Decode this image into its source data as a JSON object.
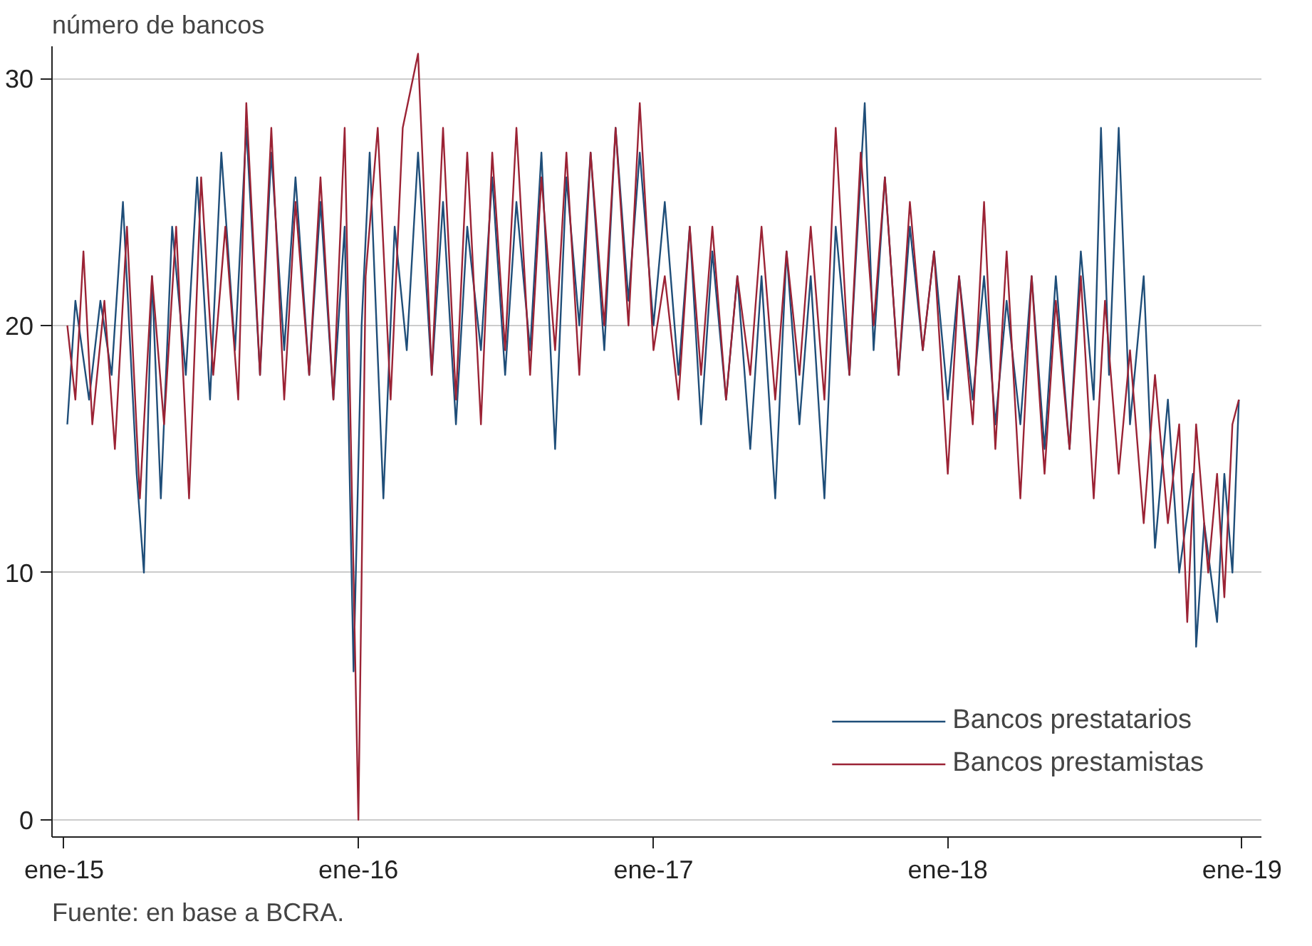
{
  "chart_data": {
    "type": "line",
    "ylabel": "número de bancos",
    "annotations": [
      "Fuente: en base a BCRA."
    ],
    "xlim": [
      "2014-12-17",
      "2019-01-25"
    ],
    "ylim": [
      -0.7,
      31.3
    ],
    "xticks": [
      {
        "value": "2015-01-01",
        "label": "ene-15"
      },
      {
        "value": "2016-01-01",
        "label": "ene-16"
      },
      {
        "value": "2017-01-01",
        "label": "ene-17"
      },
      {
        "value": "2018-01-01",
        "label": "ene-18"
      },
      {
        "value": "2019-01-01",
        "label": "ene-19"
      }
    ],
    "yticks": [
      0,
      10,
      20,
      30
    ],
    "grid": "y",
    "legend": "bottom right",
    "series": [
      {
        "name": "Bancos prestatarios",
        "color": "#1f4e79",
        "x": [
          "2015-01-05",
          "2015-01-15",
          "2015-02-01",
          "2015-02-15",
          "2015-03-01",
          "2015-03-15",
          "2015-04-01",
          "2015-04-10",
          "2015-04-20",
          "2015-05-01",
          "2015-05-15",
          "2015-06-01",
          "2015-06-15",
          "2015-07-01",
          "2015-07-15",
          "2015-08-01",
          "2015-08-15",
          "2015-09-01",
          "2015-09-15",
          "2015-10-01",
          "2015-10-15",
          "2015-11-01",
          "2015-11-15",
          "2015-12-01",
          "2015-12-15",
          "2015-12-26",
          "2016-01-05",
          "2016-01-15",
          "2016-02-01",
          "2016-02-15",
          "2016-03-01",
          "2016-03-15",
          "2016-04-01",
          "2016-04-15",
          "2016-05-01",
          "2016-05-15",
          "2016-06-01",
          "2016-06-15",
          "2016-07-01",
          "2016-07-15",
          "2016-08-01",
          "2016-08-15",
          "2016-09-01",
          "2016-09-15",
          "2016-10-01",
          "2016-10-15",
          "2016-11-01",
          "2016-11-15",
          "2016-12-01",
          "2016-12-15",
          "2017-01-01",
          "2017-01-15",
          "2017-02-01",
          "2017-02-15",
          "2017-03-01",
          "2017-03-15",
          "2017-04-01",
          "2017-04-15",
          "2017-05-01",
          "2017-05-15",
          "2017-06-01",
          "2017-06-15",
          "2017-07-01",
          "2017-07-15",
          "2017-08-01",
          "2017-08-15",
          "2017-09-01",
          "2017-09-20",
          "2017-10-01",
          "2017-10-15",
          "2017-11-01",
          "2017-11-15",
          "2017-12-01",
          "2017-12-15",
          "2018-01-01",
          "2018-01-15",
          "2018-02-01",
          "2018-02-15",
          "2018-03-01",
          "2018-03-15",
          "2018-04-01",
          "2018-04-15",
          "2018-05-01",
          "2018-05-15",
          "2018-06-01",
          "2018-06-15",
          "2018-07-01",
          "2018-07-10",
          "2018-07-20",
          "2018-08-01",
          "2018-08-15",
          "2018-09-01",
          "2018-09-15",
          "2018-10-01",
          "2018-10-15",
          "2018-11-01",
          "2018-11-05",
          "2018-11-15",
          "2018-12-01",
          "2018-12-10",
          "2018-12-20",
          "2018-12-28"
        ],
        "values": [
          16,
          21,
          17,
          21,
          18,
          25,
          14,
          10,
          22,
          13,
          24,
          18,
          26,
          17,
          27,
          19,
          28,
          18,
          27,
          19,
          26,
          18,
          25,
          17,
          24,
          6,
          20,
          27,
          13,
          24,
          19,
          27,
          18,
          25,
          16,
          24,
          19,
          26,
          18,
          25,
          19,
          27,
          15,
          26,
          20,
          27,
          19,
          28,
          21,
          27,
          20,
          25,
          18,
          24,
          16,
          23,
          17,
          22,
          15,
          22,
          13,
          23,
          16,
          22,
          13,
          24,
          18,
          29,
          19,
          26,
          18,
          24,
          19,
          23,
          17,
          22,
          17,
          22,
          16,
          21,
          16,
          22,
          15,
          22,
          15,
          23,
          17,
          28,
          18,
          28,
          16,
          22,
          11,
          17,
          10,
          14,
          7,
          12,
          8,
          14,
          10,
          17
        ]
      },
      {
        "name": "Bancos prestamistas",
        "color": "#9b2335",
        "x": [
          "2015-01-05",
          "2015-01-15",
          "2015-01-25",
          "2015-02-05",
          "2015-02-20",
          "2015-03-05",
          "2015-03-20",
          "2015-04-05",
          "2015-04-20",
          "2015-05-05",
          "2015-05-20",
          "2015-06-05",
          "2015-06-20",
          "2015-07-05",
          "2015-07-20",
          "2015-08-05",
          "2015-08-15",
          "2015-09-01",
          "2015-09-15",
          "2015-10-01",
          "2015-10-15",
          "2015-11-01",
          "2015-11-15",
          "2015-12-01",
          "2015-12-15",
          "2016-01-01",
          "2016-01-10",
          "2016-01-25",
          "2016-02-10",
          "2016-02-25",
          "2016-03-15",
          "2016-04-01",
          "2016-04-15",
          "2016-05-01",
          "2016-05-15",
          "2016-06-01",
          "2016-06-15",
          "2016-07-01",
          "2016-07-15",
          "2016-08-01",
          "2016-08-15",
          "2016-09-01",
          "2016-09-15",
          "2016-10-01",
          "2016-10-15",
          "2016-11-01",
          "2016-11-15",
          "2016-12-01",
          "2016-12-15",
          "2017-01-01",
          "2017-01-15",
          "2017-02-01",
          "2017-02-15",
          "2017-03-01",
          "2017-03-15",
          "2017-04-01",
          "2017-04-15",
          "2017-05-01",
          "2017-05-15",
          "2017-06-01",
          "2017-06-15",
          "2017-07-01",
          "2017-07-15",
          "2017-08-01",
          "2017-08-15",
          "2017-09-01",
          "2017-09-15",
          "2017-10-01",
          "2017-10-15",
          "2017-11-01",
          "2017-11-15",
          "2017-12-01",
          "2017-12-15",
          "2018-01-01",
          "2018-01-15",
          "2018-02-01",
          "2018-02-15",
          "2018-03-01",
          "2018-03-15",
          "2018-04-01",
          "2018-04-15",
          "2018-05-01",
          "2018-05-15",
          "2018-06-01",
          "2018-06-15",
          "2018-07-01",
          "2018-07-15",
          "2018-08-01",
          "2018-08-15",
          "2018-09-01",
          "2018-09-15",
          "2018-10-01",
          "2018-10-15",
          "2018-10-25",
          "2018-11-05",
          "2018-11-20",
          "2018-12-01",
          "2018-12-10",
          "2018-12-20",
          "2018-12-28"
        ],
        "values": [
          20,
          17,
          23,
          16,
          21,
          15,
          24,
          13,
          22,
          16,
          24,
          13,
          26,
          18,
          24,
          17,
          29,
          18,
          28,
          17,
          25,
          18,
          26,
          17,
          28,
          0,
          22,
          28,
          17,
          28,
          31,
          18,
          28,
          17,
          27,
          16,
          27,
          19,
          28,
          18,
          26,
          19,
          27,
          18,
          27,
          20,
          28,
          20,
          29,
          19,
          22,
          17,
          24,
          18,
          24,
          17,
          22,
          18,
          24,
          17,
          23,
          18,
          24,
          17,
          28,
          18,
          27,
          20,
          26,
          18,
          25,
          19,
          23,
          14,
          22,
          16,
          25,
          15,
          23,
          13,
          22,
          14,
          21,
          15,
          22,
          13,
          21,
          14,
          19,
          12,
          18,
          12,
          16,
          8,
          16,
          10,
          14,
          9,
          16,
          17
        ]
      }
    ]
  }
}
